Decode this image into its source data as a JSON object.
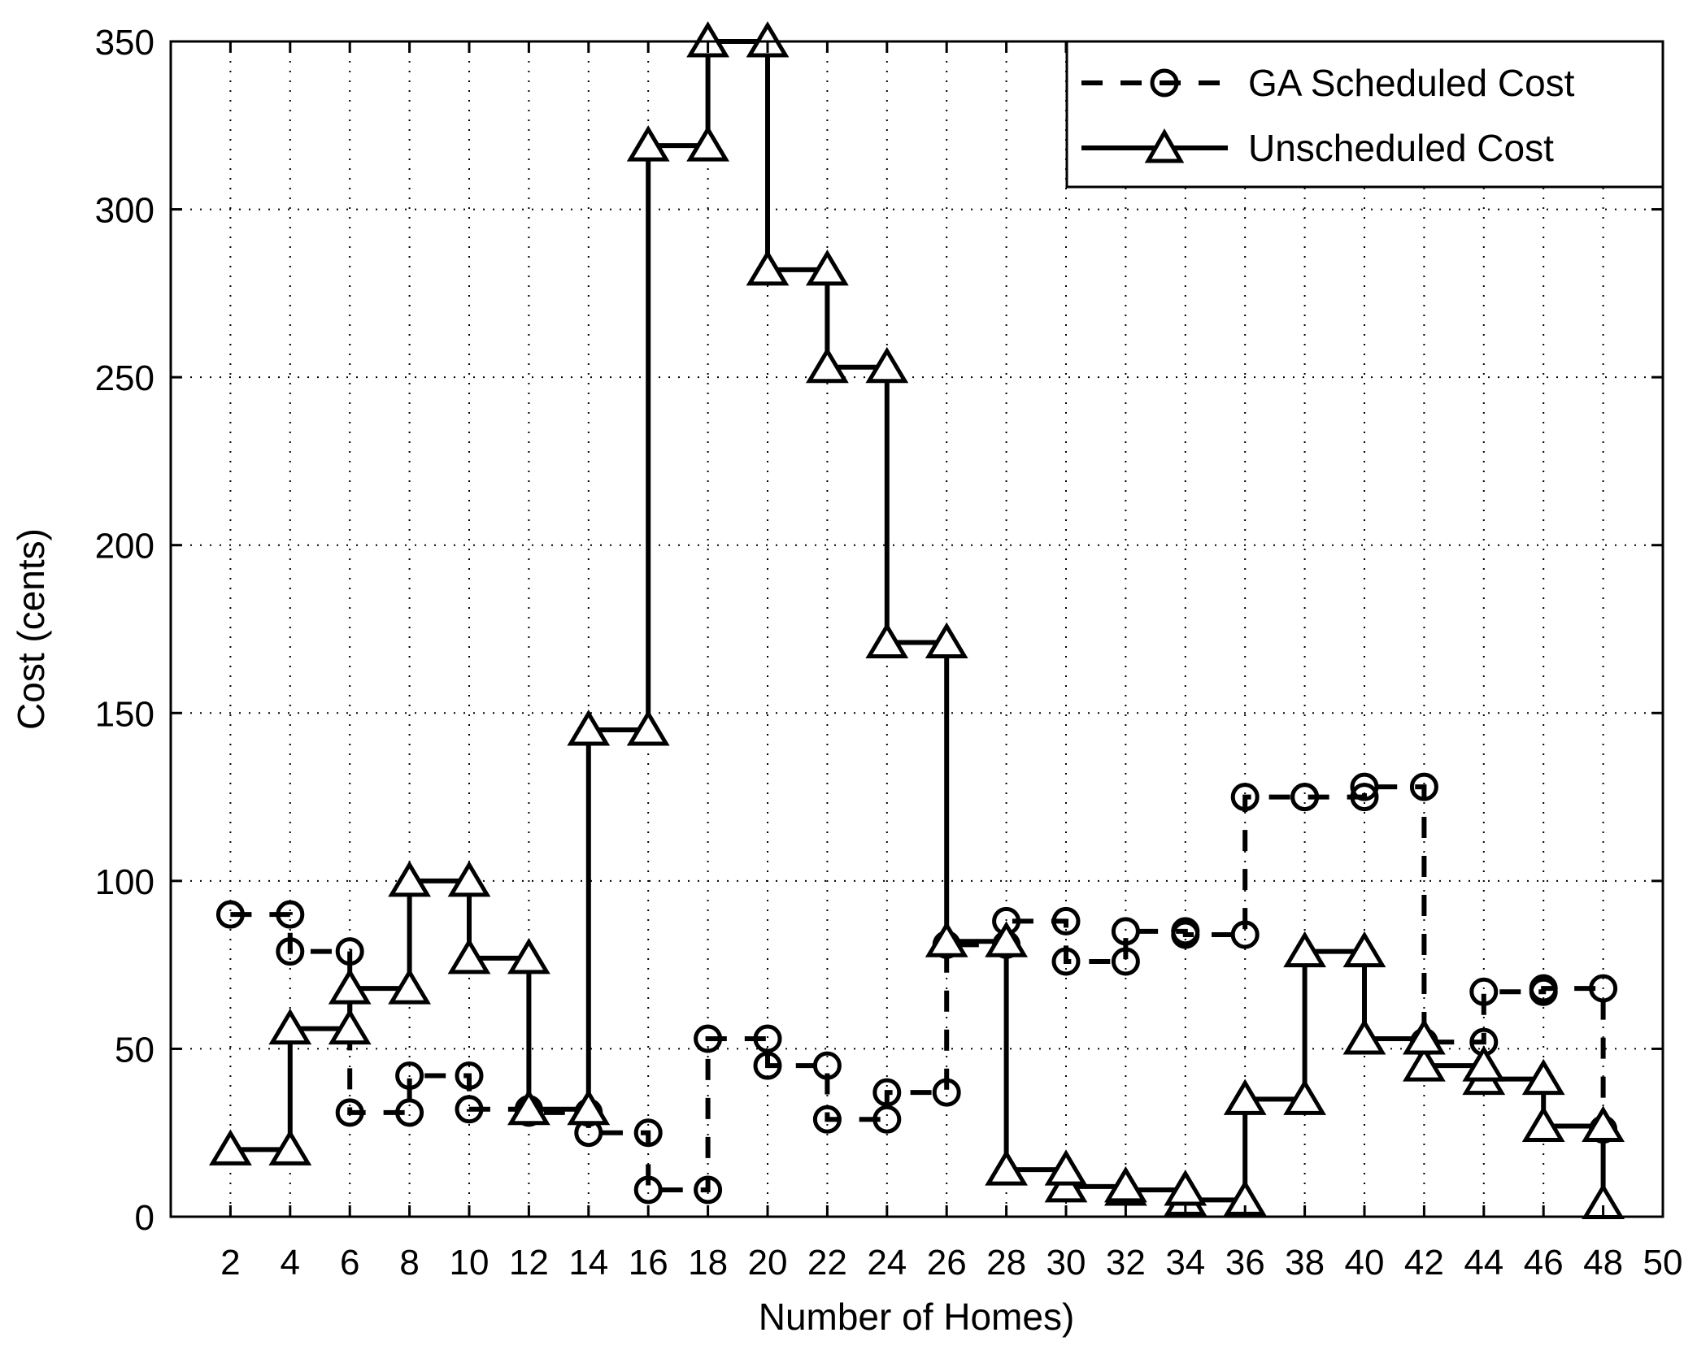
{
  "chart_data": {
    "type": "line",
    "xlabel": "Number of Homes)",
    "ylabel": "Cost (cents)",
    "xlim": [
      0,
      50
    ],
    "ylim": [
      0,
      350
    ],
    "xticks": [
      2,
      4,
      6,
      8,
      10,
      12,
      14,
      16,
      18,
      20,
      22,
      24,
      26,
      28,
      30,
      32,
      34,
      36,
      38,
      40,
      42,
      44,
      46,
      48,
      50
    ],
    "yticks": [
      0,
      50,
      100,
      150,
      200,
      250,
      300,
      350
    ],
    "grid": true,
    "legend_position": "top-right",
    "x": [
      2,
      4,
      6,
      8,
      10,
      12,
      14,
      16,
      18,
      20,
      22,
      24,
      26,
      28,
      30,
      32,
      34,
      36,
      38,
      40,
      42,
      44,
      46,
      48
    ],
    "series": [
      {
        "name": "GA Scheduled Cost",
        "style": "dashed-stairs",
        "marker": "circle",
        "values": [
          90,
          79,
          31,
          42,
          32,
          31,
          25,
          8,
          53,
          45,
          29,
          37,
          81,
          88,
          76,
          85,
          84,
          125,
          125,
          128,
          52,
          67,
          68,
          26
        ]
      },
      {
        "name": "Unscheduled Cost",
        "style": "solid-stairs",
        "marker": "triangle",
        "values": [
          20,
          56,
          68,
          100,
          77,
          32,
          145,
          319,
          350,
          282,
          253,
          171,
          82,
          14,
          9,
          8,
          5,
          35,
          79,
          53,
          45,
          41,
          27,
          4
        ]
      }
    ]
  },
  "colors": {
    "line": "#000000",
    "grid": "#000000",
    "background": "#ffffff"
  }
}
